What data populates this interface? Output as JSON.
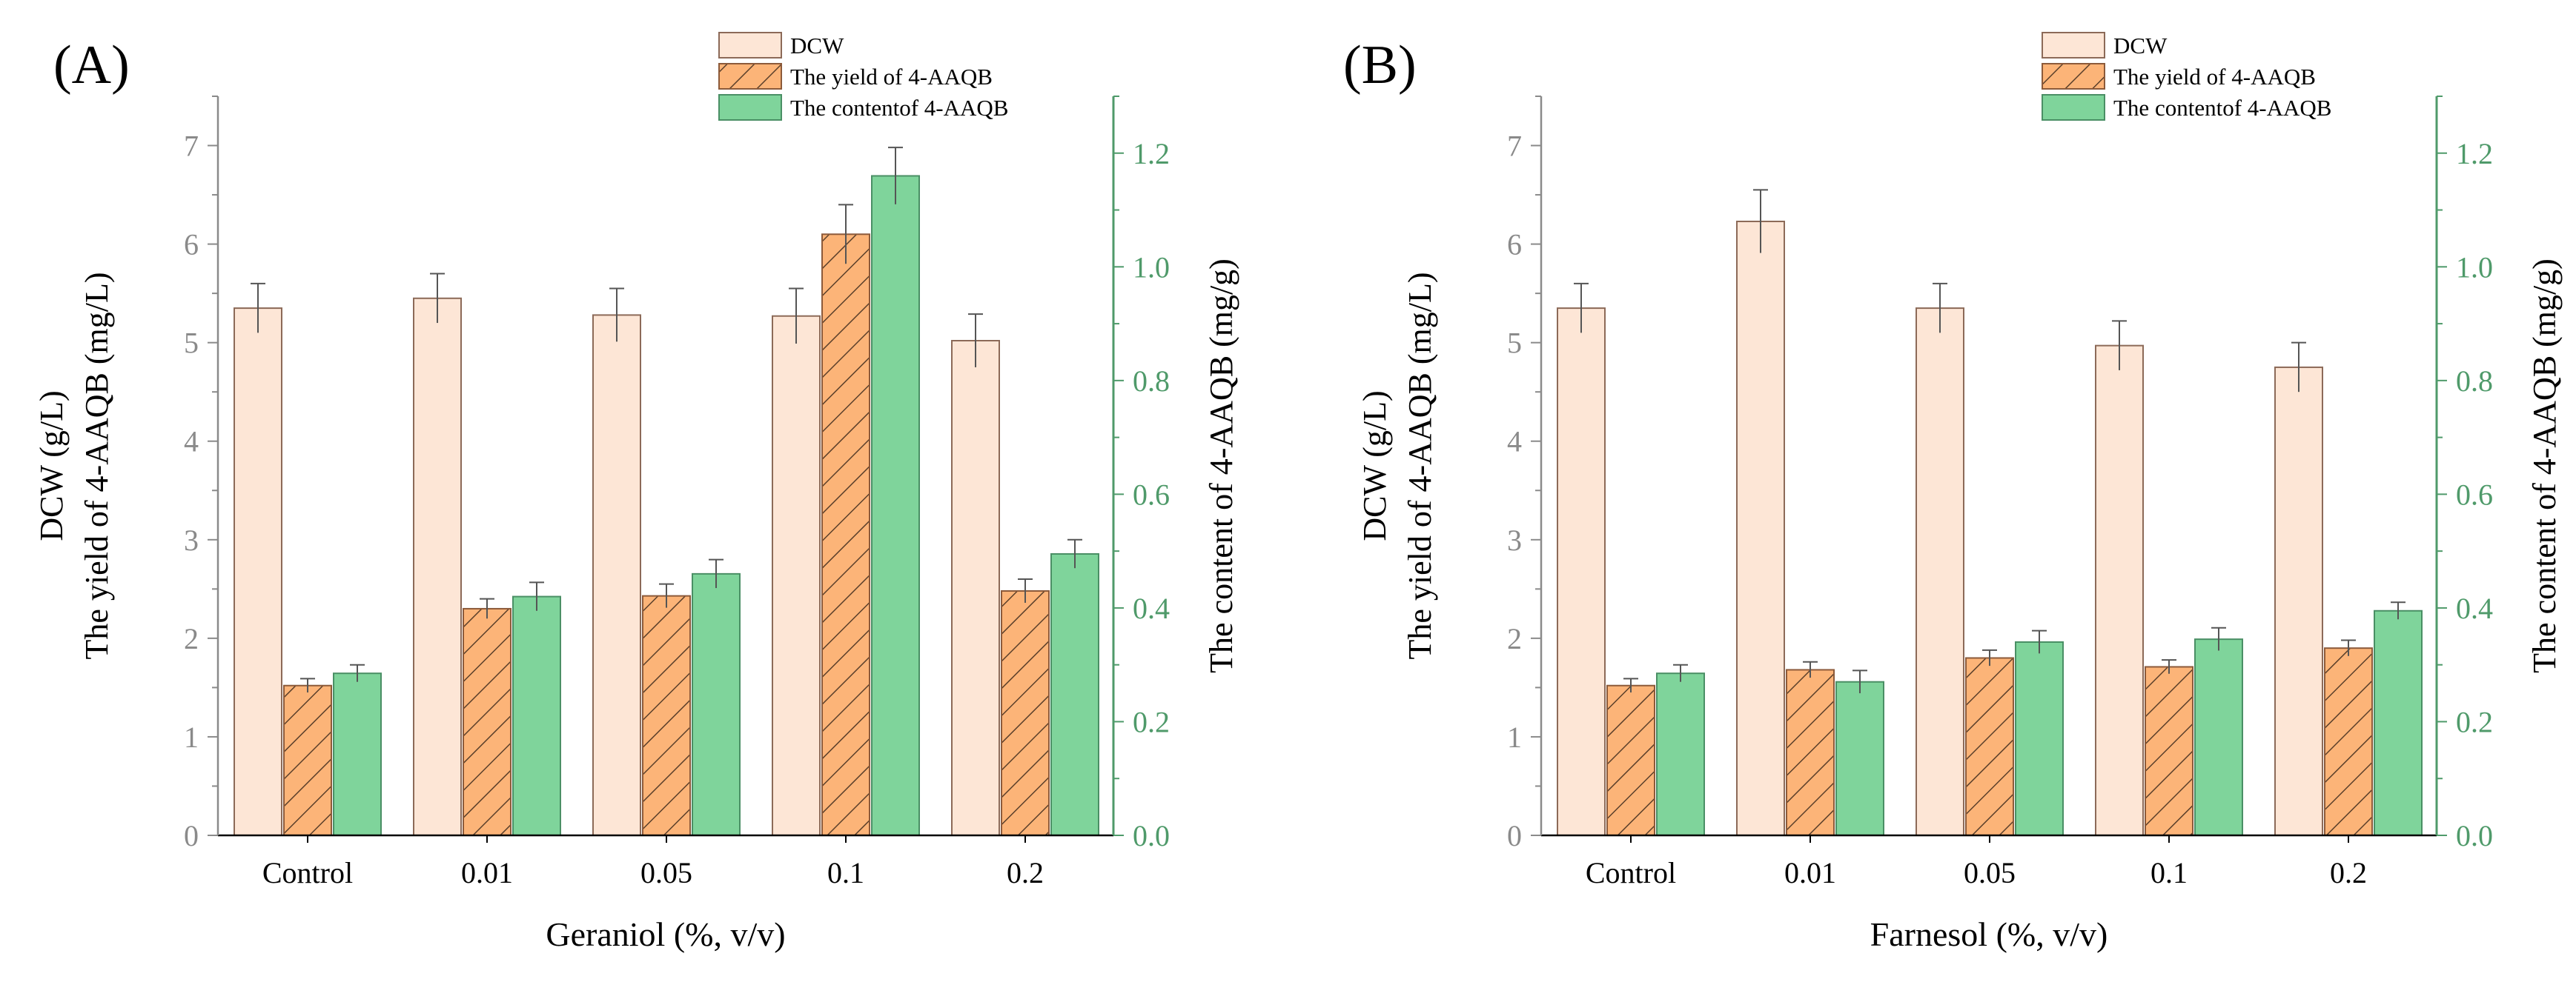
{
  "colors": {
    "dcw_fill": "#fde6d6",
    "dcw_edge": "#8c6a58",
    "yield_fill": "#fcb478",
    "yield_edge": "#8c5a3a",
    "yield_hatch": "#5a3f2a",
    "content_fill": "#7fd49b",
    "content_edge": "#4a8f65",
    "left_axis": "#8a8a8a",
    "right_axis": "#4f9a6a",
    "error_bar": "#555555"
  },
  "chart_data": [
    {
      "panel_label": "(A)",
      "type": "bar",
      "xlabel": "Geraniol (%, v/v)",
      "ylabel_line1": "DCW (g/L)",
      "ylabel_line2": "The yield of 4-AAQB (mg/L)",
      "ylabel_right": "The content of 4-AAQB (mg/g)",
      "categories": [
        "Control",
        "0.01",
        "0.05",
        "0.1",
        "0.2"
      ],
      "ylim_left": [
        0,
        7.5
      ],
      "yticks_left": [
        "0",
        "1",
        "2",
        "3",
        "4",
        "5",
        "6",
        "7"
      ],
      "ylim_right": [
        0,
        1.3
      ],
      "yticks_right": [
        "0.0",
        "0.2",
        "0.4",
        "0.6",
        "0.8",
        "1.0",
        "1.2"
      ],
      "legend": [
        "DCW",
        "The yield  of 4-AAQB",
        "The contentof 4-AAQB"
      ],
      "series": [
        {
          "name": "DCW",
          "axis": "left",
          "values": [
            5.35,
            5.45,
            5.28,
            5.27,
            5.02
          ],
          "errors": [
            0.25,
            0.25,
            0.27,
            0.28,
            0.27
          ]
        },
        {
          "name": "The yield of 4-AAQB",
          "axis": "left",
          "values": [
            1.52,
            2.3,
            2.43,
            6.1,
            2.48
          ],
          "errors": [
            0.07,
            0.1,
            0.12,
            0.3,
            0.12
          ]
        },
        {
          "name": "The content of 4-AAQB",
          "axis": "right",
          "values": [
            0.285,
            0.42,
            0.46,
            1.16,
            0.495
          ],
          "errors": [
            0.015,
            0.025,
            0.025,
            0.05,
            0.025
          ]
        }
      ]
    },
    {
      "panel_label": "(B)",
      "type": "bar",
      "xlabel": "Farnesol (%, v/v)",
      "ylabel_line1": "DCW (g/L)",
      "ylabel_line2": "The yield of 4-AAQB (mg/L)",
      "ylabel_right": "The content of 4-AAQB (mg/g)",
      "categories": [
        "Control",
        "0.01",
        "0.05",
        "0.1",
        "0.2"
      ],
      "ylim_left": [
        0,
        7.5
      ],
      "yticks_left": [
        "0",
        "1",
        "2",
        "3",
        "4",
        "5",
        "6",
        "7"
      ],
      "ylim_right": [
        0,
        1.3
      ],
      "yticks_right": [
        "0.0",
        "0.2",
        "0.4",
        "0.6",
        "0.8",
        "1.0",
        "1.2"
      ],
      "legend": [
        "DCW",
        "The yield  of 4-AAQB",
        "The contentof 4-AAQB"
      ],
      "series": [
        {
          "name": "DCW",
          "axis": "left",
          "values": [
            5.35,
            6.23,
            5.35,
            4.97,
            4.75
          ],
          "errors": [
            0.25,
            0.32,
            0.25,
            0.25,
            0.25
          ]
        },
        {
          "name": "The yield of 4-AAQB",
          "axis": "left",
          "values": [
            1.52,
            1.68,
            1.8,
            1.71,
            1.9
          ],
          "errors": [
            0.07,
            0.08,
            0.08,
            0.07,
            0.08
          ]
        },
        {
          "name": "The content of 4-AAQB",
          "axis": "right",
          "values": [
            0.285,
            0.27,
            0.34,
            0.345,
            0.395
          ],
          "errors": [
            0.015,
            0.02,
            0.02,
            0.02,
            0.015
          ]
        }
      ]
    }
  ]
}
